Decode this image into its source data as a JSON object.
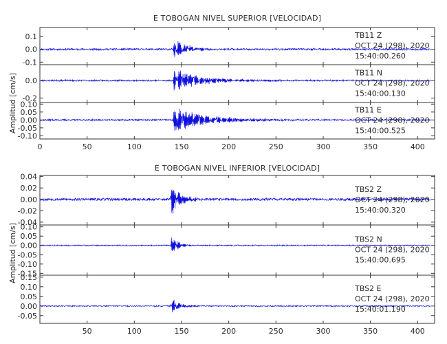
{
  "chart_data": [
    {
      "type": "line",
      "title": "E TOBOGAN NIVEL SUPERIOR [VELOCIDAD]",
      "ylabel": "Amplitud [cm/s]",
      "x_ticks": [
        0,
        50,
        100,
        150,
        200,
        250,
        300,
        350,
        400
      ],
      "xlim": [
        0,
        418
      ],
      "traces": [
        {
          "id": "sup-z",
          "station": "TB11 Z",
          "date": "OCT 24 (298), 2020",
          "time": "15:40:00.260",
          "ylim": [
            -0.12,
            0.17
          ],
          "y_ticks": [
            "0.1",
            "0.0",
            "-0.1"
          ],
          "y_tick_values": [
            0.1,
            0.0,
            -0.1
          ],
          "event_start": 141,
          "noise": 0.003,
          "peak": 0.1,
          "decay": 12,
          "seed": 11
        },
        {
          "id": "sup-n",
          "station": "TB11 N",
          "date": "OCT 24 (298), 2020",
          "time": "15:40:00.130",
          "ylim": [
            -0.25,
            0.18
          ],
          "y_ticks": [
            "0.0",
            "-0.2"
          ],
          "y_tick_values": [
            0.0,
            -0.2
          ],
          "event_start": 141,
          "noise": 0.0035,
          "peak": 0.13,
          "decay": 30,
          "seed": 23
        },
        {
          "id": "sup-e",
          "station": "TB11 E",
          "date": "OCT 24 (298), 2020",
          "time": "15:40:00.525",
          "ylim": [
            -0.12,
            0.11
          ],
          "y_ticks": [
            "0.10",
            "0.05",
            "0.00",
            "-0.05",
            "-0.10"
          ],
          "y_tick_values": [
            0.1,
            0.05,
            0.0,
            -0.05,
            -0.1
          ],
          "event_start": 141,
          "noise": 0.002,
          "peak": 0.085,
          "decay": 36,
          "seed": 37
        }
      ]
    },
    {
      "type": "line",
      "title": "E TOBOGAN NIVEL INFERIOR [VELOCIDAD]",
      "ylabel": "Amplitud [cm/s]",
      "x_ticks": [
        50,
        100,
        150,
        200,
        250,
        300,
        350,
        400
      ],
      "xlim": [
        0,
        418
      ],
      "traces": [
        {
          "id": "inf-z",
          "station": "TBS2 Z",
          "date": "OCT 24 (298), 2020",
          "time": "15:40:00.320",
          "ylim": [
            -0.045,
            0.042
          ],
          "y_ticks": [
            "0.04",
            "0.02",
            "0.00",
            "-0.02",
            "-0.04"
          ],
          "y_tick_values": [
            0.04,
            0.02,
            0.0,
            -0.02,
            -0.04
          ],
          "event_start": 138,
          "noise": 0.0009,
          "peak": 0.036,
          "decay": 9,
          "seed": 53
        },
        {
          "id": "inf-n",
          "station": "TBS2 N",
          "date": "OCT 24 (298), 2020",
          "time": "15:40:00.695",
          "ylim": [
            -0.16,
            0.11
          ],
          "y_ticks": [
            "0.10",
            "0.05",
            "0.00",
            "-0.05",
            "-0.10",
            "-0.15"
          ],
          "y_tick_values": [
            0.1,
            0.05,
            0.0,
            -0.05,
            -0.1,
            -0.15
          ],
          "event_start": 138,
          "noise": 0.0012,
          "peak": 0.055,
          "decay": 8,
          "seed": 71
        },
        {
          "id": "inf-e",
          "station": "TBS2 E",
          "date": "OCT 24 (298), 2020",
          "time": "15:40:01.190",
          "ylim": [
            -0.09,
            0.16
          ],
          "y_ticks": [
            "0.15",
            "0.10",
            "0.05",
            "0.00",
            "-0.05"
          ],
          "y_tick_values": [
            0.15,
            0.1,
            0.05,
            0.0,
            -0.05
          ],
          "event_start": 138,
          "noise": 0.0012,
          "peak": 0.045,
          "decay": 9,
          "seed": 89
        }
      ]
    }
  ],
  "colors": {
    "trace": "#1010dd",
    "axes": "#333333",
    "text": "#2a2a2a"
  }
}
